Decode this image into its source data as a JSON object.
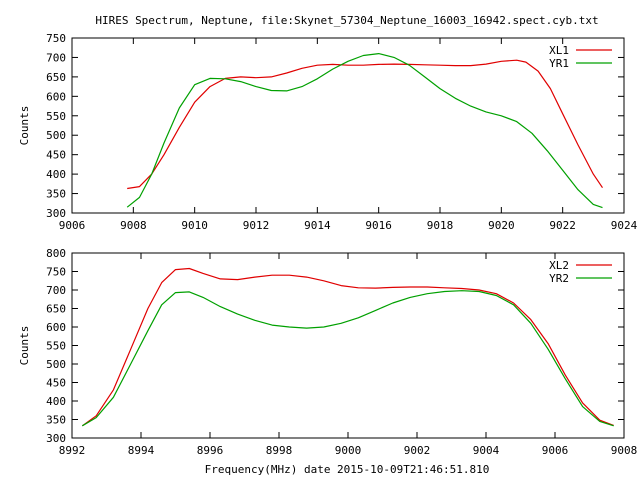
{
  "title": "HIRES Spectrum, Neptune, file:Skynet_57304_Neptune_16003_16942.spect.cyb.txt",
  "xlabel": "Frequency(MHz) date 2015-10-09T21:46:51.810",
  "colors": {
    "red": "#e00000",
    "green": "#00a000"
  },
  "chart_data": [
    {
      "type": "line",
      "ylabel": "Counts",
      "xlim": [
        9006,
        9024
      ],
      "ylim": [
        300,
        750
      ],
      "xticks": [
        9006,
        9008,
        9010,
        9012,
        9014,
        9016,
        9018,
        9020,
        9022,
        9024
      ],
      "yticks": [
        300,
        350,
        400,
        450,
        500,
        550,
        600,
        650,
        700,
        750
      ],
      "legend_position": "top-right",
      "series": [
        {
          "name": "XL1",
          "color": "#e00000",
          "x": [
            9007.8,
            9008.2,
            9008.6,
            9009.0,
            9009.5,
            9010.0,
            9010.5,
            9011.0,
            9011.5,
            9012.0,
            9012.5,
            9013.0,
            9013.5,
            9014.0,
            9014.5,
            9015.0,
            9015.5,
            9016.0,
            9016.5,
            9017.0,
            9017.5,
            9018.0,
            9018.5,
            9019.0,
            9019.5,
            9020.0,
            9020.5,
            9020.8,
            9021.2,
            9021.6,
            9022.0,
            9022.5,
            9023.0,
            9023.3
          ],
          "y": [
            363,
            368,
            400,
            450,
            520,
            585,
            625,
            646,
            650,
            648,
            650,
            660,
            672,
            680,
            682,
            680,
            680,
            682,
            683,
            682,
            681,
            680,
            679,
            679,
            683,
            690,
            693,
            688,
            665,
            620,
            555,
            475,
            400,
            365
          ]
        },
        {
          "name": "YR1",
          "color": "#00a000",
          "x": [
            9007.8,
            9008.2,
            9008.6,
            9009.0,
            9009.5,
            9010.0,
            9010.5,
            9011.0,
            9011.5,
            9012.0,
            9012.5,
            9013.0,
            9013.5,
            9014.0,
            9014.5,
            9015.0,
            9015.5,
            9016.0,
            9016.5,
            9017.0,
            9017.5,
            9018.0,
            9018.5,
            9019.0,
            9019.5,
            9020.0,
            9020.5,
            9021.0,
            9021.5,
            9022.0,
            9022.5,
            9023.0,
            9023.3
          ],
          "y": [
            315,
            340,
            400,
            480,
            570,
            630,
            646,
            645,
            638,
            625,
            615,
            614,
            625,
            645,
            670,
            690,
            705,
            710,
            700,
            680,
            650,
            620,
            595,
            575,
            560,
            550,
            535,
            505,
            460,
            410,
            360,
            322,
            314
          ]
        }
      ]
    },
    {
      "type": "line",
      "ylabel": "Counts",
      "xlim": [
        8992,
        9008
      ],
      "ylim": [
        300,
        800
      ],
      "xticks": [
        8992,
        8994,
        8996,
        8998,
        9000,
        9002,
        9004,
        9006,
        9008
      ],
      "yticks": [
        300,
        350,
        400,
        450,
        500,
        550,
        600,
        650,
        700,
        750,
        800
      ],
      "legend_position": "top-right",
      "series": [
        {
          "name": "XL2",
          "color": "#e00000",
          "x": [
            8992.3,
            8992.7,
            8993.2,
            8993.7,
            8994.2,
            8994.6,
            8995.0,
            8995.4,
            8995.8,
            8996.3,
            8996.8,
            8997.3,
            8997.8,
            8998.3,
            8998.8,
            8999.3,
            8999.8,
            9000.3,
            9000.8,
            9001.3,
            9001.8,
            9002.3,
            9002.8,
            9003.3,
            9003.8,
            9004.3,
            9004.8,
            9005.3,
            9005.8,
            9006.3,
            9006.8,
            9007.3,
            9007.7
          ],
          "y": [
            333,
            360,
            430,
            540,
            650,
            720,
            755,
            758,
            745,
            730,
            728,
            735,
            740,
            740,
            735,
            725,
            712,
            706,
            705,
            707,
            708,
            708,
            706,
            704,
            700,
            690,
            665,
            620,
            555,
            470,
            395,
            348,
            334
          ]
        },
        {
          "name": "YR2",
          "color": "#00a000",
          "x": [
            8992.3,
            8992.7,
            8993.2,
            8993.7,
            8994.2,
            8994.6,
            8995.0,
            8995.4,
            8995.8,
            8996.3,
            8996.8,
            8997.3,
            8997.8,
            8998.3,
            8998.8,
            8999.3,
            8999.8,
            9000.3,
            9000.8,
            9001.3,
            9001.8,
            9002.3,
            9002.8,
            9003.3,
            9003.8,
            9004.3,
            9004.8,
            9005.3,
            9005.8,
            9006.3,
            9006.8,
            9007.3,
            9007.7
          ],
          "y": [
            333,
            355,
            410,
            500,
            590,
            660,
            693,
            695,
            680,
            655,
            635,
            618,
            605,
            600,
            597,
            600,
            610,
            625,
            645,
            665,
            680,
            690,
            696,
            698,
            696,
            685,
            660,
            610,
            540,
            460,
            385,
            345,
            333
          ]
        }
      ]
    }
  ]
}
